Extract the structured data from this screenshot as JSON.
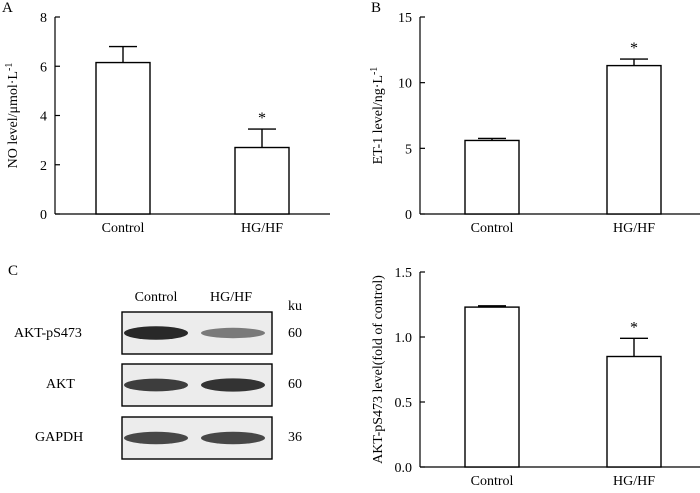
{
  "panels": {
    "a": "A",
    "b": "B",
    "c": "C"
  },
  "significance_mark": "*",
  "blot": {
    "column_headers": [
      "Control",
      "HG/HF"
    ],
    "ku_header": "ku",
    "rows": [
      {
        "label": "AKT-pS473",
        "ku": "60",
        "band_intensity": [
          0.95,
          0.55
        ]
      },
      {
        "label": "AKT",
        "ku": "60",
        "band_intensity": [
          0.85,
          0.9
        ]
      },
      {
        "label": "GAPDH",
        "ku": "36",
        "band_intensity": [
          0.8,
          0.8
        ]
      }
    ]
  },
  "chart_data": [
    {
      "id": "A",
      "type": "bar",
      "categories": [
        "Control",
        "HG/HF"
      ],
      "values": [
        6.15,
        2.7
      ],
      "errors": [
        0.65,
        0.75
      ],
      "significant": [
        false,
        true
      ],
      "ylabel": "NO level/μmol·L",
      "ylabel_sup": "-1",
      "ylim": [
        0,
        8
      ],
      "yticks": [
        0,
        2,
        4,
        6,
        8
      ],
      "ytick_labels": [
        "0",
        "2",
        "4",
        "6",
        "8"
      ]
    },
    {
      "id": "B",
      "type": "bar",
      "categories": [
        "Control",
        "HG/HF"
      ],
      "values": [
        5.6,
        11.3
      ],
      "errors": [
        0.15,
        0.5
      ],
      "significant": [
        false,
        true
      ],
      "ylabel": "ET-1 level/ng·L",
      "ylabel_sup": "-1",
      "ylim": [
        0,
        15
      ],
      "yticks": [
        0,
        5,
        10,
        15
      ],
      "ytick_labels": [
        "0",
        "5",
        "10",
        "15"
      ]
    },
    {
      "id": "C",
      "type": "bar",
      "categories": [
        "Control",
        "HG/HF"
      ],
      "values": [
        1.23,
        0.85
      ],
      "errors": [
        0.01,
        0.14
      ],
      "significant": [
        false,
        true
      ],
      "ylabel": "AKT-pS473 level(fold of control)",
      "ylabel_sup": "",
      "ylim": [
        0,
        1.5
      ],
      "yticks": [
        0,
        0.5,
        1.0,
        1.5
      ],
      "ytick_labels": [
        "0.0",
        "0.5",
        "1.0",
        "1.5"
      ]
    }
  ]
}
